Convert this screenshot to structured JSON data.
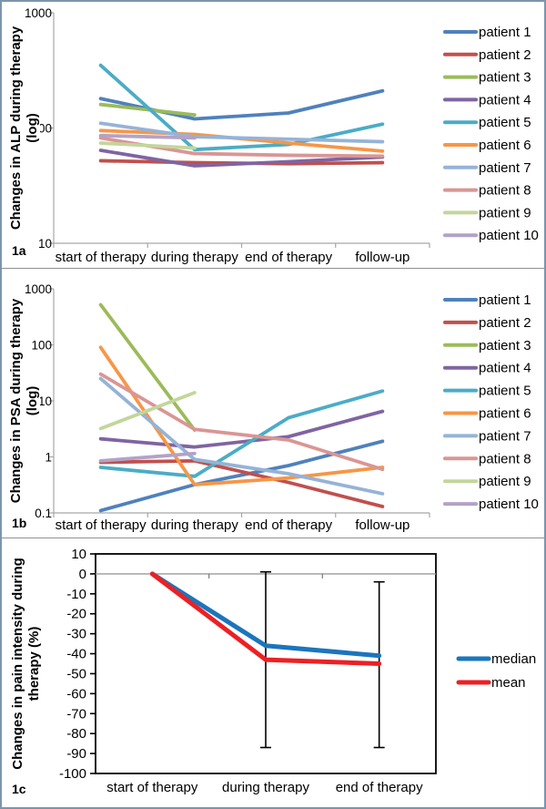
{
  "figure": {
    "panel_labels": [
      "1a",
      "1b",
      "1c"
    ]
  },
  "chart_data": [
    {
      "id": "1a",
      "type": "line",
      "panel_label": "1a",
      "ylabel_line1": "Changes in ALP during therapy",
      "ylabel_line2": "(log)",
      "y_scale": "log",
      "ylim": [
        10,
        1000
      ],
      "yticks": [
        1000,
        100,
        10
      ],
      "ytick_labels": [
        "1000",
        "100",
        "10"
      ],
      "grid": false,
      "legend_position": "right",
      "categories": [
        "start of therapy",
        "during therapy",
        "end of therapy",
        "follow-up"
      ],
      "series": [
        {
          "name": "patient 1",
          "color": "#4F81BD",
          "values": [
            180,
            120,
            135,
            210
          ]
        },
        {
          "name": "patient 2",
          "color": "#C0504D",
          "values": [
            52,
            50,
            49,
            50
          ]
        },
        {
          "name": "patient 3",
          "color": "#9BBB59",
          "values": [
            160,
            130,
            null,
            null
          ]
        },
        {
          "name": "patient 4",
          "color": "#8064A2",
          "values": [
            64,
            47,
            51,
            56
          ]
        },
        {
          "name": "patient 5",
          "color": "#4BACC6",
          "values": [
            350,
            65,
            72,
            108
          ]
        },
        {
          "name": "patient 6",
          "color": "#F79646",
          "values": [
            95,
            88,
            74,
            63
          ]
        },
        {
          "name": "patient 7",
          "color": "#95B3D7",
          "values": [
            110,
            84,
            80,
            76
          ]
        },
        {
          "name": "patient 8",
          "color": "#D99694",
          "values": [
            82,
            60,
            58,
            57
          ]
        },
        {
          "name": "patient 9",
          "color": "#C3D69B",
          "values": [
            74,
            67,
            null,
            null
          ]
        },
        {
          "name": "patient 10",
          "color": "#B3A2C7",
          "values": [
            86,
            82,
            null,
            null
          ]
        }
      ]
    },
    {
      "id": "1b",
      "type": "line",
      "panel_label": "1b",
      "ylabel_line1": "Changes in PSA during therapy",
      "ylabel_line2": "(log)",
      "y_scale": "log",
      "ylim": [
        0.1,
        1000
      ],
      "yticks": [
        1000,
        100,
        10,
        1,
        0.1
      ],
      "ytick_labels": [
        "1000",
        "100",
        "10",
        "1",
        "0.1"
      ],
      "grid": false,
      "legend_position": "right",
      "categories": [
        "start of therapy",
        "during therapy",
        "end of therapy",
        "follow-up"
      ],
      "series": [
        {
          "name": "patient 1",
          "color": "#4F81BD",
          "values": [
            0.11,
            0.32,
            0.7,
            1.9
          ]
        },
        {
          "name": "patient 2",
          "color": "#C0504D",
          "values": [
            0.8,
            0.85,
            0.35,
            0.13
          ]
        },
        {
          "name": "patient 3",
          "color": "#9BBB59",
          "values": [
            520,
            3,
            null,
            null
          ]
        },
        {
          "name": "patient 4",
          "color": "#8064A2",
          "values": [
            2.1,
            1.5,
            2.3,
            6.5
          ]
        },
        {
          "name": "patient 5",
          "color": "#4BACC6",
          "values": [
            0.65,
            0.45,
            5,
            15
          ]
        },
        {
          "name": "patient 6",
          "color": "#F79646",
          "values": [
            90,
            0.32,
            0.42,
            0.65
          ]
        },
        {
          "name": "patient 7",
          "color": "#95B3D7",
          "values": [
            25,
            0.9,
            0.5,
            0.22
          ]
        },
        {
          "name": "patient 8",
          "color": "#D99694",
          "values": [
            30,
            3.1,
            2,
            0.6
          ]
        },
        {
          "name": "patient 9",
          "color": "#C3D69B",
          "values": [
            3.2,
            14,
            null,
            null
          ]
        },
        {
          "name": "patient 10",
          "color": "#B3A2C7",
          "values": [
            0.85,
            1.15,
            null,
            null
          ]
        }
      ]
    },
    {
      "id": "1c",
      "type": "line",
      "panel_label": "1c",
      "ylabel_line1": "Changes in pain intensity during",
      "ylabel_line2": "therapy (%)",
      "y_scale": "linear",
      "ylim": [
        -100,
        10
      ],
      "ytick_step": 10,
      "grid": false,
      "legend_position": "right",
      "categories": [
        "start of therapy",
        "during therapy",
        "end of therapy"
      ],
      "series": [
        {
          "name": "median",
          "color": "#1B75BC",
          "values": [
            0,
            -36,
            -41
          ]
        },
        {
          "name": "mean",
          "color": "#EC2024",
          "values": [
            0,
            -43,
            -45
          ]
        }
      ],
      "error_bars": [
        {
          "category": "during therapy",
          "top": 1,
          "bottom": -87
        },
        {
          "category": "end of therapy",
          "top": -4,
          "bottom": -87
        }
      ]
    }
  ]
}
